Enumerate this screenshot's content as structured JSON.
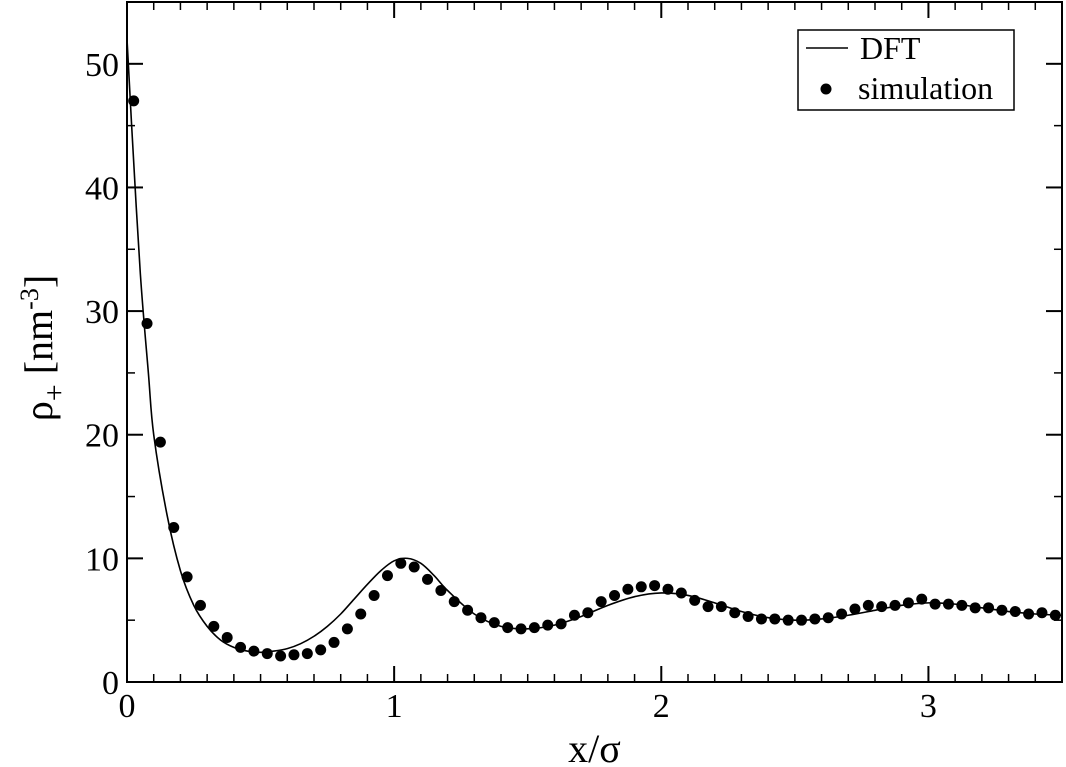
{
  "chart_data": {
    "type": "line",
    "xlabel": "x/σ",
    "ylabel": "ρ+ [nm-3]",
    "ylabel_parts": {
      "symbol": "ρ",
      "subscript": "+",
      "unit_prefix": " [nm",
      "superscript": "-3",
      "unit_suffix": "]"
    },
    "xlim": [
      0,
      3.5
    ],
    "ylim": [
      0,
      55
    ],
    "x_ticks": [
      0,
      1,
      2,
      3
    ],
    "x_tick_labels": [
      "0",
      "1",
      "2",
      "3"
    ],
    "y_ticks": [
      0,
      10,
      20,
      30,
      40,
      50
    ],
    "y_tick_labels": [
      "0",
      "10",
      "20",
      "30",
      "40",
      "50"
    ],
    "grid": false,
    "legend_position": "top-right",
    "legend": [
      {
        "label": "DFT",
        "style": "line"
      },
      {
        "label": "simulation",
        "style": "marker"
      }
    ],
    "series": [
      {
        "name": "DFT",
        "style": "line",
        "color": "#000000",
        "x": [
          0.0,
          0.02,
          0.05,
          0.08,
          0.1,
          0.15,
          0.2,
          0.25,
          0.3,
          0.35,
          0.4,
          0.45,
          0.5,
          0.55,
          0.6,
          0.65,
          0.7,
          0.75,
          0.8,
          0.85,
          0.9,
          0.95,
          1.0,
          1.05,
          1.1,
          1.15,
          1.2,
          1.3,
          1.4,
          1.5,
          1.6,
          1.7,
          1.8,
          1.9,
          2.0,
          2.1,
          2.2,
          2.3,
          2.4,
          2.5,
          2.6,
          2.7,
          2.8,
          2.9,
          3.0,
          3.1,
          3.2,
          3.3,
          3.4,
          3.5
        ],
        "y": [
          52,
          44,
          33,
          25,
          20,
          13.5,
          9,
          6.2,
          4.5,
          3.4,
          2.8,
          2.5,
          2.4,
          2.5,
          2.7,
          3.1,
          3.7,
          4.5,
          5.5,
          6.7,
          7.9,
          9.0,
          9.8,
          10.0,
          9.6,
          8.6,
          7.4,
          5.5,
          4.5,
          4.3,
          4.6,
          5.3,
          6.2,
          6.9,
          7.2,
          7.0,
          6.4,
          5.7,
          5.2,
          5.0,
          5.1,
          5.4,
          5.8,
          6.2,
          6.4,
          6.3,
          6.0,
          5.7,
          5.5,
          5.4
        ]
      },
      {
        "name": "simulation",
        "style": "marker",
        "color": "#000000",
        "x": [
          0.025,
          0.075,
          0.125,
          0.175,
          0.225,
          0.275,
          0.325,
          0.375,
          0.425,
          0.475,
          0.525,
          0.575,
          0.625,
          0.675,
          0.725,
          0.775,
          0.825,
          0.875,
          0.925,
          0.975,
          1.025,
          1.075,
          1.125,
          1.175,
          1.225,
          1.275,
          1.325,
          1.375,
          1.425,
          1.475,
          1.525,
          1.575,
          1.625,
          1.675,
          1.725,
          1.775,
          1.825,
          1.875,
          1.925,
          1.975,
          2.025,
          2.075,
          2.125,
          2.175,
          2.225,
          2.275,
          2.325,
          2.375,
          2.425,
          2.475,
          2.525,
          2.575,
          2.625,
          2.675,
          2.725,
          2.775,
          2.825,
          2.875,
          2.925,
          2.975,
          3.025,
          3.075,
          3.125,
          3.175,
          3.225,
          3.275,
          3.325,
          3.375,
          3.425,
          3.475
        ],
        "y": [
          47,
          29,
          19.4,
          12.5,
          8.5,
          6.2,
          4.5,
          3.6,
          2.8,
          2.5,
          2.3,
          2.1,
          2.2,
          2.3,
          2.6,
          3.2,
          4.3,
          5.5,
          7.0,
          8.6,
          9.6,
          9.3,
          8.3,
          7.4,
          6.5,
          5.8,
          5.2,
          4.8,
          4.4,
          4.3,
          4.4,
          4.6,
          4.7,
          5.4,
          5.6,
          6.5,
          7.0,
          7.5,
          7.7,
          7.8,
          7.5,
          7.2,
          6.6,
          6.1,
          6.1,
          5.6,
          5.3,
          5.1,
          5.1,
          5.0,
          5.0,
          5.1,
          5.2,
          5.5,
          5.9,
          6.2,
          6.1,
          6.2,
          6.4,
          6.7,
          6.3,
          6.3,
          6.2,
          6.0,
          6.0,
          5.8,
          5.7,
          5.5,
          5.6,
          5.4
        ]
      }
    ]
  }
}
